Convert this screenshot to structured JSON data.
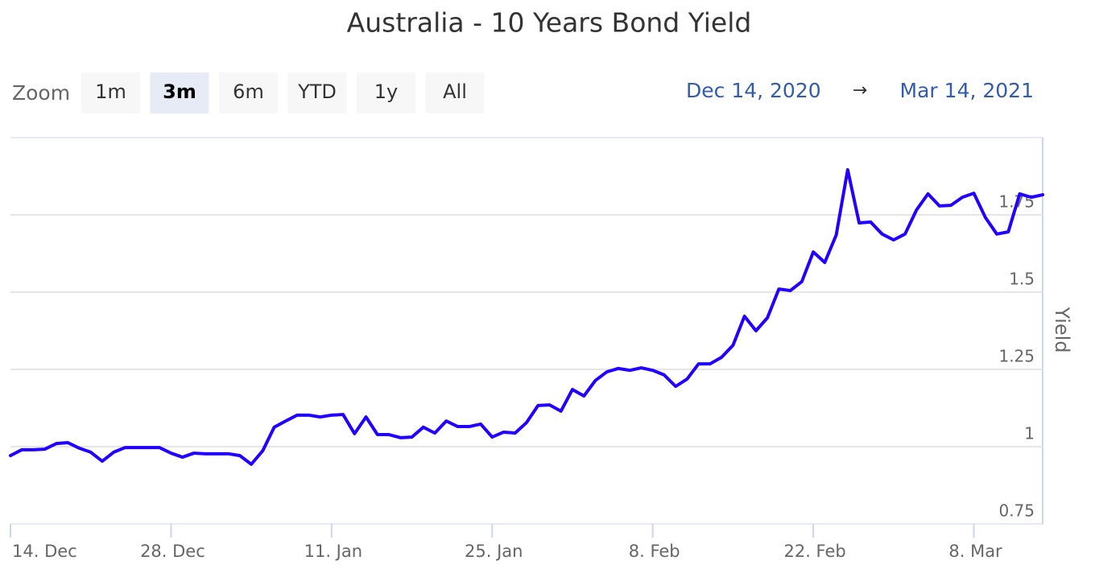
{
  "chart_data": {
    "type": "line",
    "title": "Australia - 10 Years Bond Yield",
    "range_selector": {
      "label": "Zoom",
      "buttons": [
        "1m",
        "3m",
        "6m",
        "YTD",
        "1y",
        "All"
      ],
      "selected": "3m",
      "from": "Dec 14, 2020",
      "arrow": "→",
      "to": "Mar 14, 2021"
    },
    "y_axis_label": "Yield",
    "color": "#2200ff",
    "x": [
      "2020-12-14",
      "2020-12-15",
      "2020-12-16",
      "2020-12-17",
      "2020-12-18",
      "2020-12-19",
      "2020-12-20",
      "2020-12-21",
      "2020-12-22",
      "2020-12-23",
      "2020-12-24",
      "2020-12-25",
      "2020-12-26",
      "2020-12-27",
      "2020-12-28",
      "2020-12-29",
      "2020-12-30",
      "2020-12-31",
      "2021-01-01",
      "2021-01-02",
      "2021-01-03",
      "2021-01-04",
      "2021-01-05",
      "2021-01-06",
      "2021-01-07",
      "2021-01-08",
      "2021-01-09",
      "2021-01-10",
      "2021-01-11",
      "2021-01-12",
      "2021-01-13",
      "2021-01-14",
      "2021-01-15",
      "2021-01-16",
      "2021-01-17",
      "2021-01-18",
      "2021-01-19",
      "2021-01-20",
      "2021-01-21",
      "2021-01-22",
      "2021-01-23",
      "2021-01-24",
      "2021-01-25",
      "2021-01-26",
      "2021-01-27",
      "2021-01-28",
      "2021-01-29",
      "2021-01-30",
      "2021-01-31",
      "2021-02-01",
      "2021-02-02",
      "2021-02-03",
      "2021-02-04",
      "2021-02-05",
      "2021-02-06",
      "2021-02-07",
      "2021-02-08",
      "2021-02-09",
      "2021-02-10",
      "2021-02-11",
      "2021-02-12",
      "2021-02-13",
      "2021-02-14",
      "2021-02-15",
      "2021-02-16",
      "2021-02-17",
      "2021-02-18",
      "2021-02-19",
      "2021-02-20",
      "2021-02-21",
      "2021-02-22",
      "2021-02-23",
      "2021-02-24",
      "2021-02-25",
      "2021-02-26",
      "2021-02-27",
      "2021-02-28",
      "2021-03-01",
      "2021-03-02",
      "2021-03-03",
      "2021-03-04",
      "2021-03-05",
      "2021-03-06",
      "2021-03-07",
      "2021-03-08",
      "2021-03-09",
      "2021-03-10",
      "2021-03-11",
      "2021-03-12",
      "2021-03-13",
      "2021-03-14"
    ],
    "values": [
      0.971,
      0.99,
      0.99,
      0.992,
      1.01,
      1.013,
      0.995,
      0.982,
      0.953,
      0.982,
      0.997,
      0.997,
      0.997,
      0.997,
      0.979,
      0.966,
      0.979,
      0.977,
      0.977,
      0.977,
      0.971,
      0.943,
      0.987,
      1.063,
      1.083,
      1.102,
      1.102,
      1.096,
      1.102,
      1.104,
      1.042,
      1.096,
      1.039,
      1.039,
      1.029,
      1.031,
      1.063,
      1.044,
      1.083,
      1.065,
      1.065,
      1.073,
      1.031,
      1.047,
      1.044,
      1.078,
      1.133,
      1.135,
      1.115,
      1.185,
      1.164,
      1.214,
      1.242,
      1.253,
      1.247,
      1.255,
      1.247,
      1.232,
      1.195,
      1.219,
      1.268,
      1.268,
      1.289,
      1.328,
      1.422,
      1.375,
      1.417,
      1.51,
      1.505,
      1.534,
      1.63,
      1.596,
      1.685,
      1.896,
      1.724,
      1.727,
      1.688,
      1.669,
      1.688,
      1.766,
      1.818,
      1.779,
      1.781,
      1.807,
      1.82,
      1.742,
      1.688,
      1.695,
      1.818,
      1.807,
      1.815
    ],
    "xlim": [
      "2020-12-14",
      "2021-03-14"
    ],
    "xticks": [
      {
        "value": "2020-12-14",
        "label": "14. Dec"
      },
      {
        "value": "2020-12-28",
        "label": "28. Dec"
      },
      {
        "value": "2021-01-11",
        "label": "11. Jan"
      },
      {
        "value": "2021-01-25",
        "label": "25. Jan"
      },
      {
        "value": "2021-02-08",
        "label": "8. Feb"
      },
      {
        "value": "2021-02-22",
        "label": "22. Feb"
      },
      {
        "value": "2021-03-08",
        "label": "8. Mar"
      }
    ],
    "ylim": [
      0.75,
      2.0
    ],
    "yticks": [
      0.75,
      1,
      1.25,
      1.5,
      1.75
    ],
    "grid": true
  }
}
